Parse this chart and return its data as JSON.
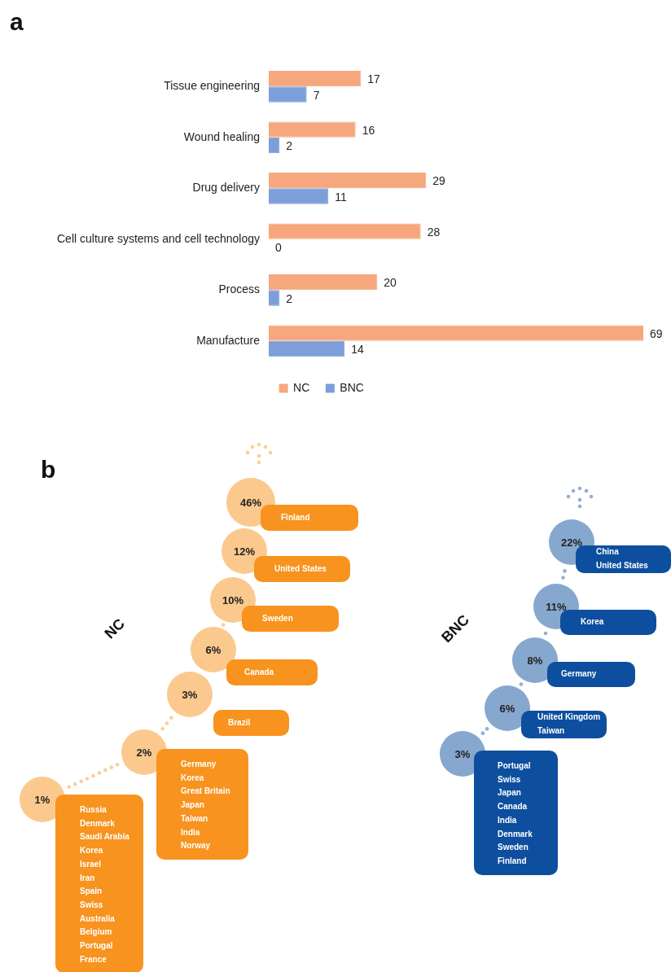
{
  "chart_data": [
    {
      "type": "bar",
      "orientation": "horizontal",
      "annotations": [
        "a"
      ],
      "categories": [
        "Tissue engineering",
        "Wound healing",
        "Drug delivery",
        "Cell culture systems and cell technology",
        "Process",
        "Manufacture"
      ],
      "series": [
        {
          "name": "NC",
          "color": "#f6a77e",
          "values": [
            17,
            16,
            29,
            28,
            20,
            69
          ]
        },
        {
          "name": "BNC",
          "color": "#7c9fd9",
          "values": [
            7,
            2,
            11,
            0,
            2,
            14
          ]
        }
      ],
      "data_labels": true,
      "legend": "bottom"
    },
    {
      "type": "other",
      "title": "NC",
      "color": "#f7931e",
      "annotations": [
        "b",
        {
          "text": "Finland",
          "x": "46%"
        },
        {
          "text": "United States",
          "x": "12%"
        },
        {
          "text": "Sweden",
          "x": "10%"
        },
        {
          "text": "Canada",
          "x": "6%"
        },
        {
          "text": "Brazil",
          "x": "3%"
        },
        {
          "text": "Germany\nKorea\nGreat Britain\nJapan\nTaiwan\nIndia\nNorway",
          "x": "2%"
        },
        {
          "text": "Russia\nDenmark\nSaudi Arabia\nKorea\nIsrael\nIran\nSpain\nSwiss\nAustralia\nBelgium\nPortugal\nFrance",
          "x": "1%"
        }
      ],
      "categories": [
        "46%",
        "12%",
        "10%",
        "6%",
        "3%",
        "2%",
        "1%"
      ]
    },
    {
      "type": "other",
      "title": "BNC",
      "color": "#0d4f9e",
      "annotations": [
        {
          "text": "China\nUnited States",
          "x": "22%"
        },
        {
          "text": "Korea",
          "x": "11%"
        },
        {
          "text": "Germany",
          "x": "8%"
        },
        {
          "text": "United Kingdom\nTaiwan",
          "x": "6%"
        },
        {
          "text": "Portugal\nSwiss\nJapan\nCanada\nIndia\nDenmark\nSweden\nFinland",
          "x": "3%"
        }
      ],
      "categories": [
        "22%",
        "11%",
        "8%",
        "6%",
        "3%"
      ]
    }
  ]
}
